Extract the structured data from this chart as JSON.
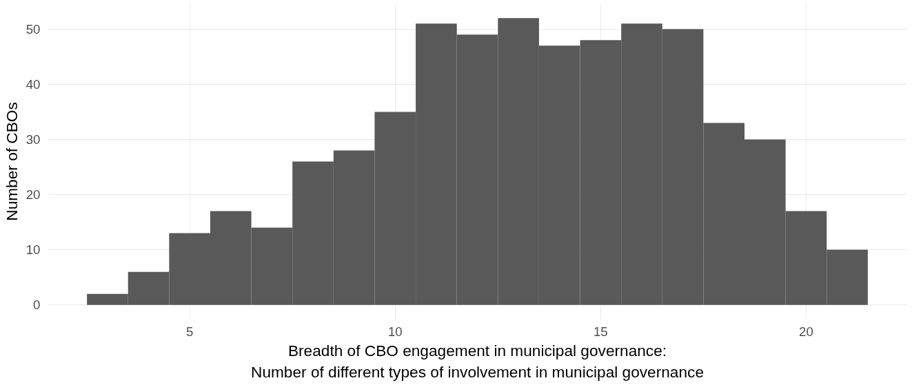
{
  "chart_data": {
    "type": "histogram",
    "xlabel": "Breadth of CBO engagement in municipal governance:\nNumber of different types of involvement in municipal governance",
    "ylabel": "Number of CBOs",
    "bins": [
      2.5,
      3.5,
      4.5,
      5.5,
      6.5,
      7.5,
      8.5,
      9.5,
      10.5,
      11.5,
      12.5,
      13.5,
      14.5,
      15.5,
      16.5,
      17.5,
      18.5,
      19.5,
      20.5,
      21.5
    ],
    "values": [
      2,
      6,
      13,
      17,
      14,
      26,
      28,
      35,
      51,
      49,
      52,
      47,
      48,
      51,
      50,
      33,
      30,
      17,
      10
    ],
    "color": "#595959",
    "xlim": [
      1.55,
      22.45
    ],
    "ylim": [
      -2.6,
      54.6
    ],
    "xticks": [
      5,
      10,
      15,
      20
    ],
    "yticks": [
      0,
      10,
      20,
      30,
      40,
      50
    ],
    "grid": true
  }
}
